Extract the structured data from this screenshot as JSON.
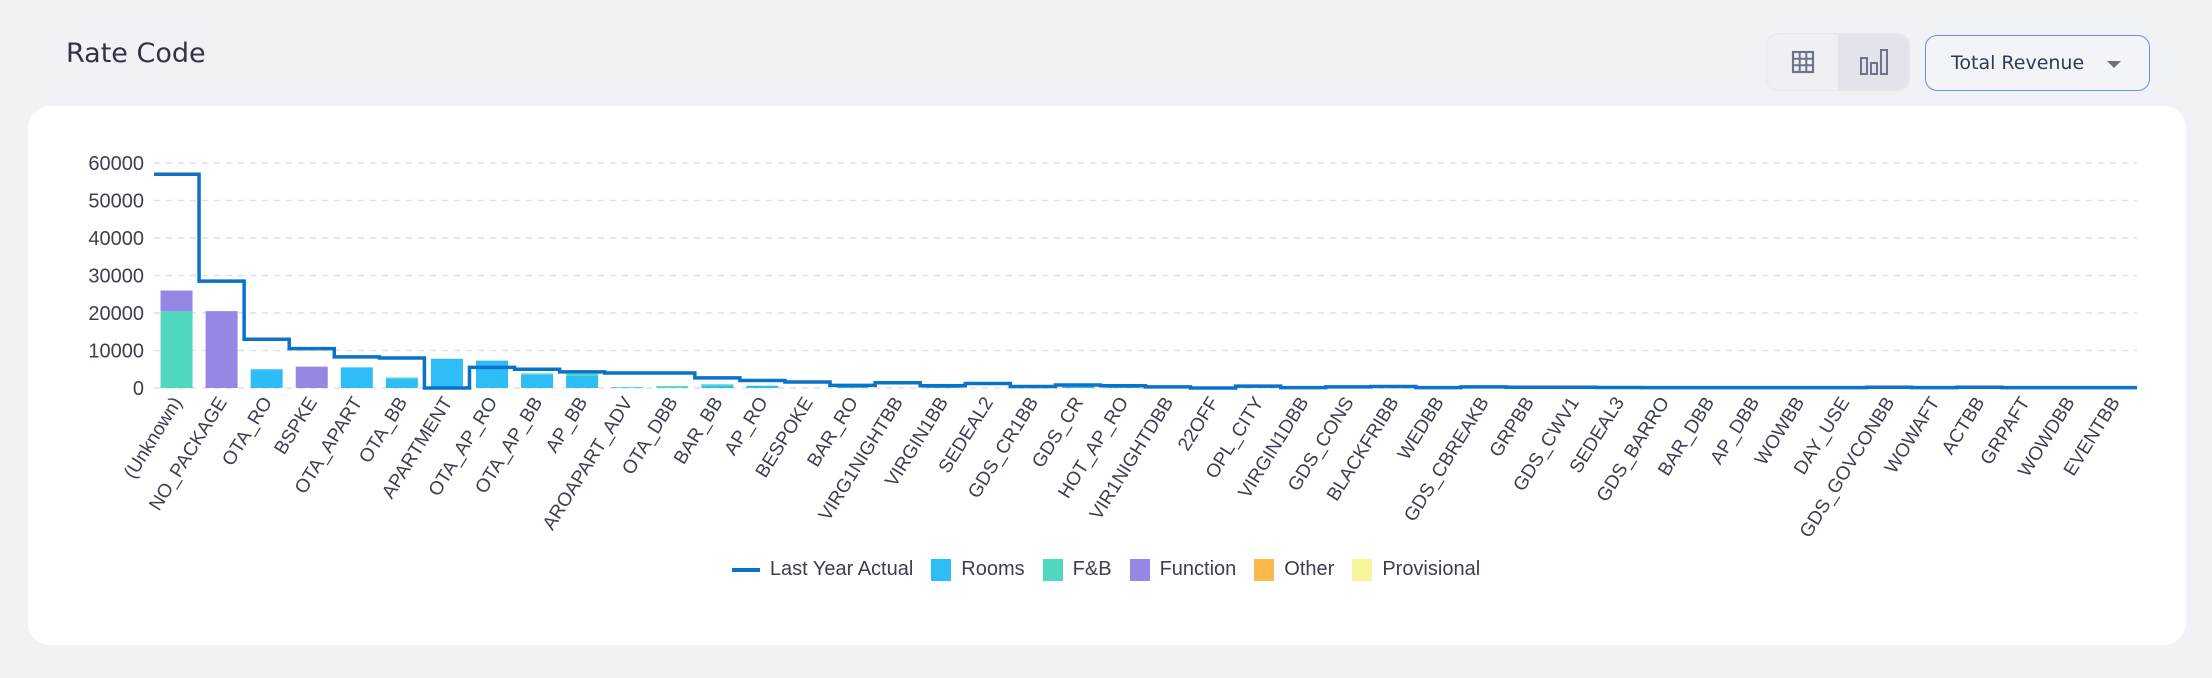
{
  "header": {
    "title": "Rate Code",
    "dropdown_label": "Total Revenue",
    "view_toggle": [
      "table-view",
      "chart-view"
    ],
    "active_view": "chart-view"
  },
  "chart_data": {
    "type": "bar",
    "stacked": true,
    "title": "Rate Code",
    "xlabel": "",
    "ylabel": "",
    "ylim": [
      0,
      60000
    ],
    "yticks": [
      0,
      10000,
      20000,
      30000,
      40000,
      50000,
      60000
    ],
    "grid": true,
    "legend_position": "bottom",
    "categories": [
      "(Unknown)",
      "NO_PACKAGE",
      "OTA_RO",
      "BSPKE",
      "OTA_APART",
      "OTA_BB",
      "APARTMENT",
      "OTA_AP_RO",
      "OTA_AP_BB",
      "AP_BB",
      "AROAPART_ADV",
      "OTA_DBB",
      "BAR_BB",
      "AP_RO",
      "BESPOKE",
      "BAR_RO",
      "VIRG1NIGHTBB",
      "VIRGIN1BB",
      "SEDEAL2",
      "GDS_CR1BB",
      "GDS_CR",
      "HOT_AP_RO",
      "VIR1NIGHTDBB",
      "22OFF",
      "OPL_CITY",
      "VIRGIN1DBB",
      "GDS_CONS",
      "BLACKFRIBB",
      "WEDBB",
      "GDS_CBREAKB",
      "GRPBB",
      "GDS_CWV1",
      "SEDEAL3",
      "GDS_BARRO",
      "BAR_DBB",
      "AP_DBB",
      "WOWBB",
      "DAY_USE",
      "GDS_GOVCONBB",
      "WOWAFT",
      "ACTBB",
      "GRPAFT",
      "WOWDBB",
      "EVENTBB"
    ],
    "series": [
      {
        "name": "Rooms",
        "color": "#2ebdf7",
        "values": [
          0,
          0,
          5000,
          0,
          5500,
          2500,
          7800,
          7300,
          3500,
          3300,
          200,
          0,
          600,
          600,
          0,
          800,
          0,
          800,
          0,
          400,
          600,
          400,
          0,
          0,
          200,
          0,
          200,
          200,
          0,
          200,
          100,
          100,
          100,
          100,
          100,
          100,
          100,
          100,
          100,
          100,
          100,
          100,
          100,
          100
        ]
      },
      {
        "name": "F&B",
        "color": "#4fd8be",
        "values": [
          20500,
          0,
          0,
          0,
          0,
          300,
          0,
          0,
          400,
          500,
          0,
          500,
          400,
          0,
          0,
          0,
          0,
          300,
          0,
          0,
          0,
          0,
          0,
          0,
          0,
          0,
          0,
          0,
          0,
          0,
          0,
          0,
          0,
          0,
          0,
          0,
          0,
          0,
          0,
          0,
          0,
          0,
          0,
          0
        ]
      },
      {
        "name": "Function",
        "color": "#9587e3",
        "values": [
          5500,
          20500,
          0,
          5700,
          0,
          0,
          0,
          0,
          0,
          0,
          0,
          0,
          0,
          0,
          0,
          0,
          0,
          0,
          0,
          0,
          0,
          0,
          0,
          0,
          0,
          0,
          0,
          0,
          0,
          0,
          0,
          0,
          0,
          0,
          0,
          0,
          0,
          0,
          0,
          0,
          0,
          0,
          0,
          0
        ]
      },
      {
        "name": "Other",
        "color": "#fcb84c",
        "values": [
          0,
          0,
          0,
          0,
          0,
          0,
          0,
          0,
          0,
          0,
          0,
          0,
          0,
          0,
          0,
          0,
          0,
          0,
          0,
          0,
          0,
          0,
          0,
          0,
          0,
          0,
          0,
          0,
          0,
          0,
          0,
          0,
          0,
          0,
          0,
          0,
          0,
          0,
          0,
          0,
          0,
          0,
          0,
          0
        ]
      },
      {
        "name": "Provisional",
        "color": "#f8f69c",
        "values": [
          0,
          0,
          0,
          0,
          0,
          0,
          0,
          0,
          0,
          0,
          0,
          0,
          0,
          0,
          0,
          0,
          0,
          0,
          0,
          0,
          0,
          0,
          0,
          0,
          0,
          0,
          0,
          0,
          0,
          0,
          0,
          0,
          0,
          0,
          0,
          0,
          0,
          0,
          0,
          0,
          0,
          0,
          0,
          0
        ]
      }
    ],
    "line": {
      "name": "Last Year Actual",
      "color": "#0b72c9",
      "type": "step",
      "values": [
        57000,
        28500,
        13000,
        10500,
        8300,
        8000,
        0,
        5500,
        5000,
        4300,
        4000,
        4000,
        2700,
        2000,
        1600,
        700,
        1400,
        600,
        1200,
        400,
        800,
        600,
        300,
        0,
        500,
        100,
        300,
        400,
        100,
        300,
        200,
        200,
        150,
        100,
        100,
        100,
        100,
        100,
        200,
        100,
        200,
        100,
        100,
        100
      ]
    }
  }
}
